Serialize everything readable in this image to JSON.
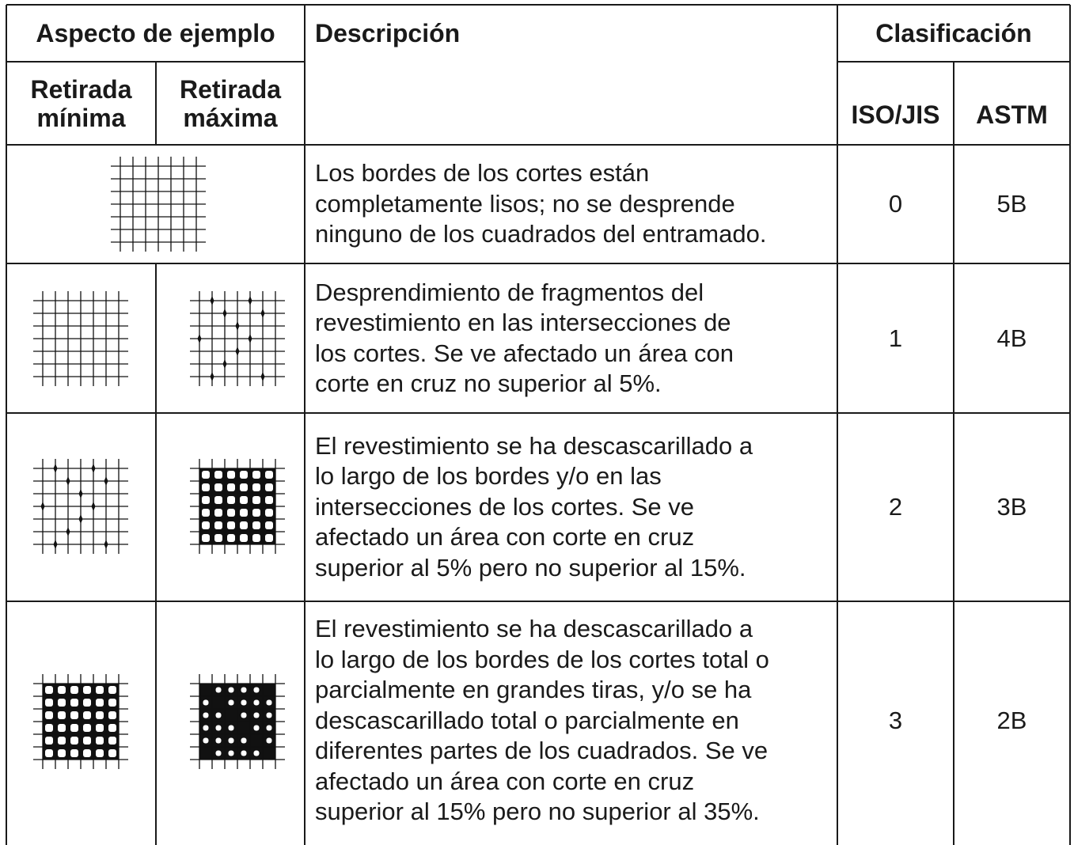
{
  "header": {
    "aspect": "Aspecto de ejemplo",
    "description": "Descripción",
    "classification": "Clasificación",
    "min": "Retirada\nmínima",
    "max": "Retirada\nmáxima",
    "iso": "ISO/JIS",
    "astm": "ASTM"
  },
  "table": {
    "rows": [
      {
        "description": "Los bordes de los cortes están\ncompletamente lisos; no se desprende\nninguno de los cuadrados del entramado.",
        "iso": "0",
        "astm": "5B"
      },
      {
        "description": "Desprendimiento de fragmentos del\nrevestimiento en las intersecciones de\nlos cortes. Se ve afectado un área con\ncorte en cruz no superior al 5%.",
        "iso": "1",
        "astm": "4B"
      },
      {
        "description": "El revestimiento se ha descascarillado a\nlo largo de los bordes y/o en las\nintersecciones de los cortes. Se ve\nafectado un área con corte en cruz\nsuperior al 5% pero no superior al 15%.",
        "iso": "2",
        "astm": "3B"
      },
      {
        "description": "El revestimiento se ha descascarillado a\nlo largo de los bordes de los cortes total o\nparcialmente en grandes tiras, y/o se ha\ndescascarillado total o parcialmente en\ndiferentes partes de los cuadrados. Se ve\nafectado un área con corte en cruz\nsuperior al 15% pero no superior al 35%.",
        "iso": "3",
        "astm": "2B"
      }
    ]
  }
}
